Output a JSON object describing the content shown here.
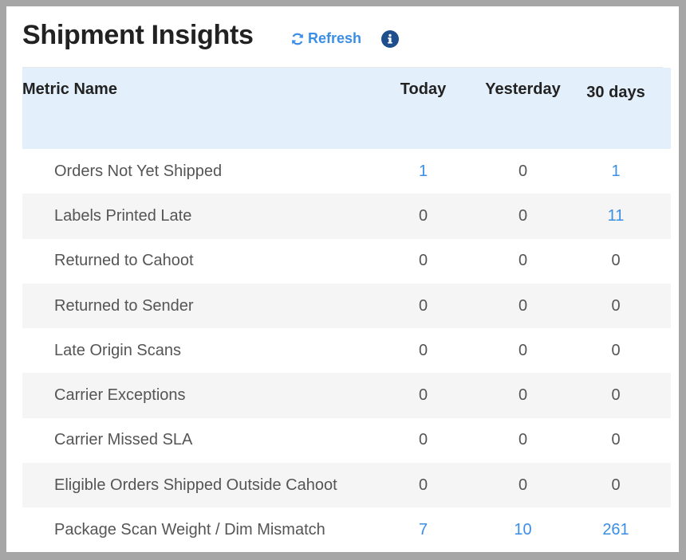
{
  "header": {
    "title": "Shipment Insights",
    "refresh_label": "Refresh"
  },
  "table": {
    "columns": [
      "Metric Name",
      "Today",
      "Yesterday",
      "30 days"
    ],
    "rows": [
      {
        "name": "Orders Not Yet Shipped",
        "today": "1",
        "yesterday": "0",
        "days30": "1"
      },
      {
        "name": "Labels Printed Late",
        "today": "0",
        "yesterday": "0",
        "days30": "11"
      },
      {
        "name": "Returned to Cahoot",
        "today": "0",
        "yesterday": "0",
        "days30": "0"
      },
      {
        "name": "Returned to Sender",
        "today": "0",
        "yesterday": "0",
        "days30": "0"
      },
      {
        "name": "Late Origin Scans",
        "today": "0",
        "yesterday": "0",
        "days30": "0"
      },
      {
        "name": "Carrier Exceptions",
        "today": "0",
        "yesterday": "0",
        "days30": "0"
      },
      {
        "name": "Carrier Missed SLA",
        "today": "0",
        "yesterday": "0",
        "days30": "0"
      },
      {
        "name": "Eligible Orders Shipped Outside Cahoot",
        "today": "0",
        "yesterday": "0",
        "days30": "0"
      },
      {
        "name": "Package Scan Weight / Dim Mismatch",
        "today": "7",
        "yesterday": "10",
        "days30": "261"
      }
    ]
  },
  "icons": {
    "refresh": "refresh-icon",
    "info": "info-icon"
  },
  "colors": {
    "link": "#3a8ee6",
    "header_bg": "#e3effa",
    "info_icon": "#1f4e8c"
  }
}
